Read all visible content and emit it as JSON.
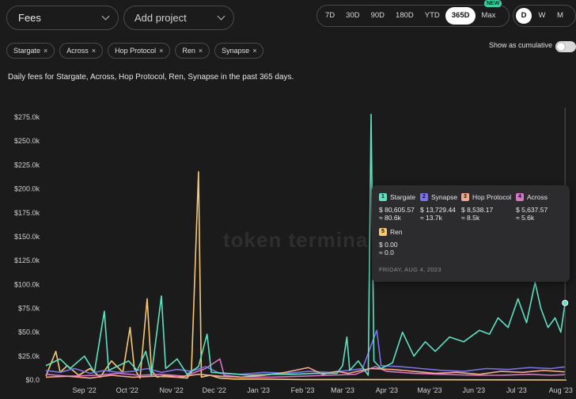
{
  "controls": {
    "metric": "Fees",
    "project_placeholder": "Add project",
    "ranges": [
      "7D",
      "30D",
      "90D",
      "180D",
      "YTD",
      "365D",
      "Max"
    ],
    "active_range": "365D",
    "badge": "NEW",
    "granularity": [
      "D",
      "W",
      "M"
    ],
    "active_granularity": "D",
    "cumulative_label": "Show as cumulative"
  },
  "chips": [
    "Stargate",
    "Across",
    "Hop Protocol",
    "Ren",
    "Synapse"
  ],
  "subtitle": "Daily fees for Stargate, Across, Hop Protocol, Ren, Synapse in the past 365 days.",
  "watermark": "token termina",
  "tooltip": {
    "date": "FRIDAY, AUG 4, 2023",
    "items": [
      {
        "num": "1",
        "name": "Stargate",
        "value": "$ 80,605.57",
        "approx": "≈ 80.6k",
        "color": "#5fe0c0"
      },
      {
        "num": "2",
        "name": "Synapse",
        "value": "$ 13,729.44",
        "approx": "≈ 13.7k",
        "color": "#7b72e6"
      },
      {
        "num": "3",
        "name": "Hop Protocol",
        "value": "$ 8,538.17",
        "approx": "≈ 8.5k",
        "color": "#f4a98a"
      },
      {
        "num": "4",
        "name": "Across",
        "value": "$ 5,637.57",
        "approx": "≈ 5.6k",
        "color": "#d873c6"
      },
      {
        "num": "5",
        "name": "Ren",
        "value": "$ 0.00",
        "approx": "≈ 0.0",
        "color": "#f5c875"
      }
    ]
  },
  "chart_data": {
    "type": "line",
    "ylim": [
      0,
      285000
    ],
    "yticks": [
      0,
      25000,
      50000,
      75000,
      100000,
      125000,
      150000,
      175000,
      200000,
      225000,
      250000,
      275000
    ],
    "ytick_labels": [
      "$0.0",
      "$25.0k",
      "$50.0k",
      "$75.0k",
      "$100.0k",
      "$125.0k",
      "$150.0k",
      "$175.0k",
      "$200.0k",
      "$225.0k",
      "$250.0k",
      "$275.0k"
    ],
    "xlim": [
      "2022-08-05",
      "2023-08-05"
    ],
    "xtick_dates": [
      "2022-09-01",
      "2022-10-01",
      "2022-11-01",
      "2022-12-01",
      "2023-01-01",
      "2023-02-01",
      "2023-03-01",
      "2023-04-01",
      "2023-05-01",
      "2023-06-01",
      "2023-07-01",
      "2023-08-01"
    ],
    "xtick_labels": [
      "Sep '22",
      "Oct '22",
      "Nov '22",
      "Dec '22",
      "Jan '23",
      "Feb '23",
      "Mar '23",
      "Apr '23",
      "May '23",
      "Jun '23",
      "Jul '23",
      "Aug '23"
    ],
    "series": [
      {
        "name": "Ren",
        "color": "#f5c875",
        "points": [
          [
            "2022-08-05",
            4000
          ],
          [
            "2022-08-12",
            30000
          ],
          [
            "2022-08-15",
            8000
          ],
          [
            "2022-08-20",
            15000
          ],
          [
            "2022-08-28",
            5000
          ],
          [
            "2022-09-05",
            12000
          ],
          [
            "2022-09-12",
            3000
          ],
          [
            "2022-09-20",
            20000
          ],
          [
            "2022-09-28",
            8000
          ],
          [
            "2022-10-03",
            55000
          ],
          [
            "2022-10-06",
            12000
          ],
          [
            "2022-10-10",
            2000
          ],
          [
            "2022-10-15",
            85000
          ],
          [
            "2022-10-18",
            10000
          ],
          [
            "2022-10-22",
            3000
          ],
          [
            "2022-10-28",
            5000
          ],
          [
            "2022-11-05",
            3000
          ],
          [
            "2022-11-12",
            2000
          ],
          [
            "2022-11-15",
            8000
          ],
          [
            "2022-11-20",
            218000
          ],
          [
            "2022-11-22",
            3000
          ],
          [
            "2022-11-28",
            5000
          ],
          [
            "2022-12-05",
            2000
          ],
          [
            "2022-12-15",
            1000
          ],
          [
            "2023-01-01",
            1000
          ],
          [
            "2023-02-01",
            500
          ],
          [
            "2023-03-01",
            500
          ],
          [
            "2023-08-05",
            0
          ]
        ]
      },
      {
        "name": "Across",
        "color": "#d873c6",
        "points": [
          [
            "2022-08-05",
            6000
          ],
          [
            "2022-08-20",
            4000
          ],
          [
            "2022-09-10",
            5000
          ],
          [
            "2022-09-25",
            7000
          ],
          [
            "2022-10-10",
            5000
          ],
          [
            "2022-10-25",
            6000
          ],
          [
            "2022-11-10",
            4000
          ],
          [
            "2022-11-25",
            12000
          ],
          [
            "2022-12-05",
            22000
          ],
          [
            "2022-12-08",
            5000
          ],
          [
            "2022-12-20",
            3000
          ],
          [
            "2023-01-10",
            3000
          ],
          [
            "2023-02-01",
            4000
          ],
          [
            "2023-02-20",
            5000
          ],
          [
            "2023-03-10",
            6000
          ],
          [
            "2023-03-24",
            14000
          ],
          [
            "2023-04-01",
            9000
          ],
          [
            "2023-04-20",
            7000
          ],
          [
            "2023-05-10",
            6000
          ],
          [
            "2023-06-01",
            5000
          ],
          [
            "2023-06-20",
            5000
          ],
          [
            "2023-07-10",
            6000
          ],
          [
            "2023-07-25",
            5000
          ],
          [
            "2023-08-04",
            5638
          ]
        ]
      },
      {
        "name": "Synapse",
        "color": "#7b72e6",
        "points": [
          [
            "2022-08-05",
            10000
          ],
          [
            "2022-08-15",
            8000
          ],
          [
            "2022-08-25",
            12000
          ],
          [
            "2022-09-05",
            7000
          ],
          [
            "2022-09-15",
            10000
          ],
          [
            "2022-09-25",
            8000
          ],
          [
            "2022-10-05",
            9000
          ],
          [
            "2022-10-15",
            12000
          ],
          [
            "2022-10-25",
            8000
          ],
          [
            "2022-11-05",
            11000
          ],
          [
            "2022-11-15",
            9000
          ],
          [
            "2022-11-25",
            14000
          ],
          [
            "2022-12-05",
            7000
          ],
          [
            "2022-12-20",
            6000
          ],
          [
            "2023-01-05",
            8000
          ],
          [
            "2023-01-20",
            7000
          ],
          [
            "2023-02-05",
            9000
          ],
          [
            "2023-02-20",
            8000
          ],
          [
            "2023-03-05",
            10000
          ],
          [
            "2023-03-15",
            12000
          ],
          [
            "2023-03-25",
            52000
          ],
          [
            "2023-03-28",
            15000
          ],
          [
            "2023-04-10",
            14000
          ],
          [
            "2023-04-25",
            12000
          ],
          [
            "2023-05-10",
            10000
          ],
          [
            "2023-05-25",
            9000
          ],
          [
            "2023-06-10",
            12000
          ],
          [
            "2023-06-25",
            11000
          ],
          [
            "2023-07-10",
            13000
          ],
          [
            "2023-07-25",
            12000
          ],
          [
            "2023-08-04",
            13729
          ]
        ]
      },
      {
        "name": "Hop Protocol",
        "color": "#f4a98a",
        "points": [
          [
            "2022-08-05",
            3000
          ],
          [
            "2022-08-20",
            4000
          ],
          [
            "2022-09-05",
            2000
          ],
          [
            "2022-09-20",
            5000
          ],
          [
            "2022-10-05",
            3000
          ],
          [
            "2022-10-20",
            4000
          ],
          [
            "2022-11-05",
            3000
          ],
          [
            "2022-11-20",
            6000
          ],
          [
            "2022-12-05",
            4000
          ],
          [
            "2022-12-20",
            3000
          ],
          [
            "2023-01-05",
            5000
          ],
          [
            "2023-01-20",
            8000
          ],
          [
            "2023-02-05",
            13000
          ],
          [
            "2023-02-15",
            6000
          ],
          [
            "2023-02-25",
            9000
          ],
          [
            "2023-03-05",
            7000
          ],
          [
            "2023-03-20",
            12000
          ],
          [
            "2023-04-05",
            11000
          ],
          [
            "2023-04-20",
            9000
          ],
          [
            "2023-05-05",
            7000
          ],
          [
            "2023-05-20",
            8000
          ],
          [
            "2023-06-05",
            6000
          ],
          [
            "2023-06-20",
            9000
          ],
          [
            "2023-07-05",
            8000
          ],
          [
            "2023-07-20",
            10000
          ],
          [
            "2023-08-04",
            8538
          ]
        ]
      },
      {
        "name": "Stargate",
        "color": "#5fe0c0",
        "points": [
          [
            "2022-08-05",
            15000
          ],
          [
            "2022-08-15",
            22000
          ],
          [
            "2022-08-22",
            12000
          ],
          [
            "2022-09-01",
            25000
          ],
          [
            "2022-09-08",
            8000
          ],
          [
            "2022-09-15",
            72000
          ],
          [
            "2022-09-18",
            10000
          ],
          [
            "2022-09-25",
            15000
          ],
          [
            "2022-10-02",
            20000
          ],
          [
            "2022-10-08",
            10000
          ],
          [
            "2022-10-14",
            30000
          ],
          [
            "2022-10-18",
            5000
          ],
          [
            "2022-10-25",
            88000
          ],
          [
            "2022-10-28",
            12000
          ],
          [
            "2022-11-05",
            22000
          ],
          [
            "2022-11-12",
            6000
          ],
          [
            "2022-11-20",
            14000
          ],
          [
            "2022-11-26",
            48000
          ],
          [
            "2022-11-29",
            8000
          ],
          [
            "2022-12-10",
            7000
          ],
          [
            "2022-12-25",
            5000
          ],
          [
            "2023-01-10",
            6000
          ],
          [
            "2023-01-25",
            6000
          ],
          [
            "2023-02-10",
            7000
          ],
          [
            "2023-02-25",
            7000
          ],
          [
            "2023-03-01",
            15000
          ],
          [
            "2023-03-04",
            45000
          ],
          [
            "2023-03-06",
            10000
          ],
          [
            "2023-03-12",
            20000
          ],
          [
            "2023-03-19",
            5000
          ],
          [
            "2023-03-21",
            278000
          ],
          [
            "2023-03-23",
            20000
          ],
          [
            "2023-03-28",
            12000
          ],
          [
            "2023-04-05",
            18000
          ],
          [
            "2023-04-12",
            50000
          ],
          [
            "2023-04-20",
            25000
          ],
          [
            "2023-04-28",
            40000
          ],
          [
            "2023-05-05",
            30000
          ],
          [
            "2023-05-15",
            45000
          ],
          [
            "2023-05-25",
            40000
          ],
          [
            "2023-06-05",
            52000
          ],
          [
            "2023-06-12",
            48000
          ],
          [
            "2023-06-18",
            65000
          ],
          [
            "2023-06-25",
            55000
          ],
          [
            "2023-07-02",
            85000
          ],
          [
            "2023-07-08",
            60000
          ],
          [
            "2023-07-14",
            102000
          ],
          [
            "2023-07-18",
            75000
          ],
          [
            "2023-07-23",
            55000
          ],
          [
            "2023-07-28",
            65000
          ],
          [
            "2023-08-01",
            50000
          ],
          [
            "2023-08-04",
            80606
          ]
        ]
      }
    ]
  }
}
